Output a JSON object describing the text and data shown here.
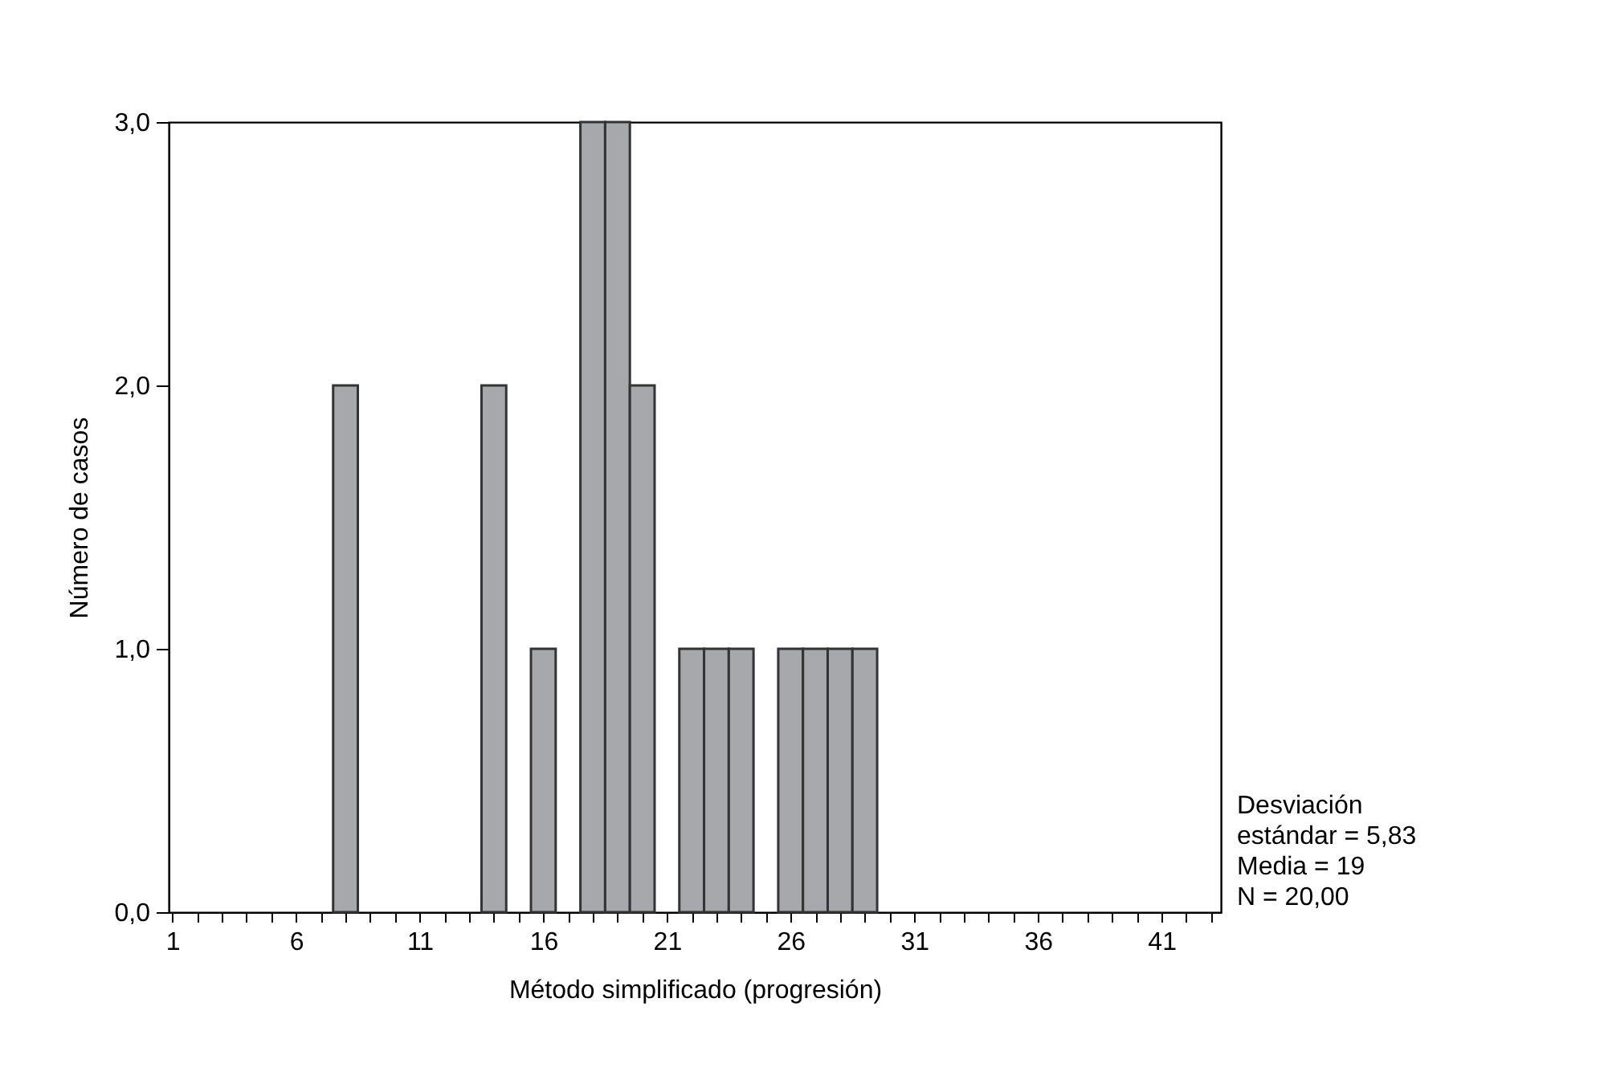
{
  "chart_data": {
    "type": "histogram",
    "xlabel": "Método simplificado (progresión)",
    "ylabel": "Número de casos",
    "bins": [
      7.5,
      8.5,
      9.5,
      10.5,
      11.5,
      12.5,
      13.5,
      14.5,
      15.5,
      16.5,
      17.5,
      18.5,
      19.5,
      20.5,
      21.5,
      22.5,
      23.5,
      24.5,
      25.5,
      26.5,
      27.5,
      28.5,
      29.5
    ],
    "values": [
      2,
      0,
      0,
      0,
      0,
      0,
      2,
      0,
      1,
      0,
      3,
      3,
      2,
      0,
      1,
      1,
      1,
      0,
      1,
      1,
      1,
      1
    ],
    "color": "#a7a8ab",
    "xlim": [
      0.85,
      43.4
    ],
    "xticks": [
      1,
      {
        "value": 2,
        "label": null
      },
      {
        "value": 3,
        "label": null
      },
      {
        "value": 4,
        "label": null
      },
      {
        "value": 5,
        "label": null
      },
      6,
      {
        "value": 7,
        "label": null
      },
      {
        "value": 8,
        "label": null
      },
      {
        "value": 9,
        "label": null
      },
      {
        "value": 10,
        "label": null
      },
      11,
      {
        "value": 12,
        "label": null
      },
      {
        "value": 13,
        "label": null
      },
      {
        "value": 14,
        "label": null
      },
      {
        "value": 15,
        "label": null
      },
      16,
      {
        "value": 17,
        "label": null
      },
      {
        "value": 18,
        "label": null
      },
      {
        "value": 19,
        "label": null
      },
      {
        "value": 20,
        "label": null
      },
      21,
      {
        "value": 22,
        "label": null
      },
      {
        "value": 23,
        "label": null
      },
      {
        "value": 24,
        "label": null
      },
      {
        "value": 25,
        "label": null
      },
      26,
      {
        "value": 27,
        "label": null
      },
      {
        "value": 28,
        "label": null
      },
      {
        "value": 29,
        "label": null
      },
      {
        "value": 30,
        "label": null
      },
      31,
      {
        "value": 32,
        "label": null
      },
      {
        "value": 33,
        "label": null
      },
      {
        "value": 34,
        "label": null
      },
      {
        "value": 35,
        "label": null
      },
      36,
      {
        "value": 37,
        "label": null
      },
      {
        "value": 38,
        "label": null
      },
      {
        "value": 39,
        "label": null
      },
      {
        "value": 40,
        "label": null
      },
      41,
      {
        "value": 42,
        "label": null
      },
      {
        "value": 43,
        "label": null
      }
    ],
    "ylim": [
      0,
      3
    ],
    "yticks": [
      {
        "value": 0,
        "label": "0,0"
      },
      {
        "value": 1,
        "label": "1,0"
      },
      {
        "value": 2,
        "label": "2,0"
      },
      {
        "value": 3,
        "label": "3,0"
      }
    ],
    "grid": false,
    "annotations": [
      "Desviación estándar =  5,83",
      "Media = 19",
      "N = 20,00"
    ]
  }
}
